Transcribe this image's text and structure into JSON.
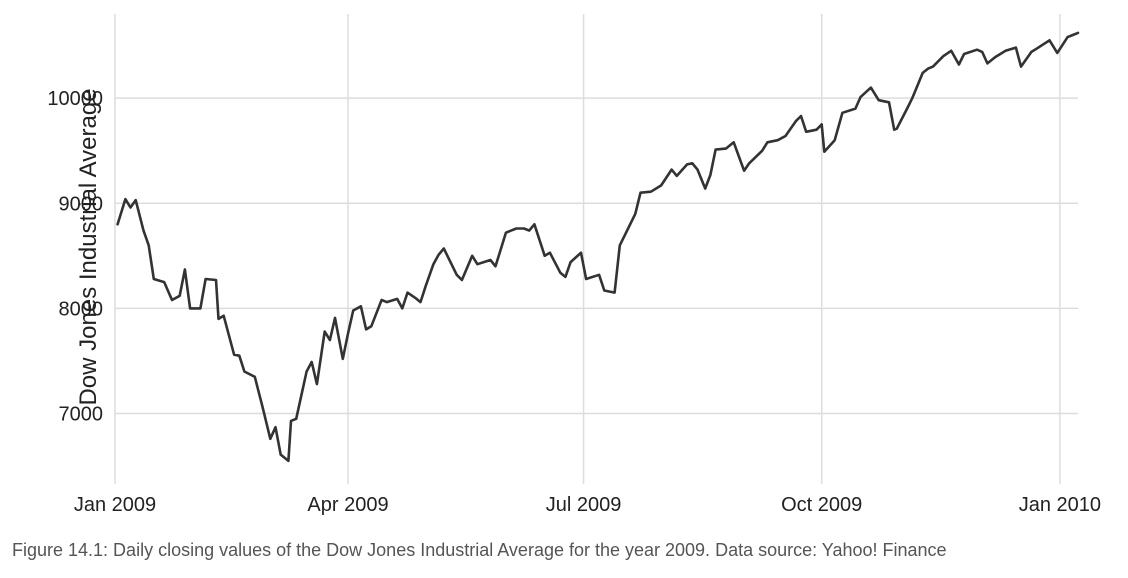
{
  "chart_data": {
    "type": "line",
    "title": "",
    "xlabel": "",
    "ylabel": "Dow Jones Industrial Average",
    "xlim": [
      "2009-01-01",
      "2010-01-08"
    ],
    "ylim": [
      6330,
      10800
    ],
    "x_ticks": [
      {
        "date": "2009-01-01",
        "label": "Jan 2009"
      },
      {
        "date": "2009-04-01",
        "label": "Apr 2009"
      },
      {
        "date": "2009-07-01",
        "label": "Jul 2009"
      },
      {
        "date": "2009-10-01",
        "label": "Oct 2009"
      },
      {
        "date": "2010-01-01",
        "label": "Jan 2010"
      }
    ],
    "y_ticks": [
      7000,
      8000,
      9000,
      10000
    ],
    "grid": true,
    "line_color": "#333333",
    "grid_color": "#dddddd",
    "series": [
      {
        "x": [
          "2009-01-02",
          "2009-01-05",
          "2009-01-07",
          "2009-01-09",
          "2009-01-12",
          "2009-01-14",
          "2009-01-16",
          "2009-01-20",
          "2009-01-23",
          "2009-01-26",
          "2009-01-28",
          "2009-01-30",
          "2009-02-03",
          "2009-02-05",
          "2009-02-09",
          "2009-02-10",
          "2009-02-12",
          "2009-02-16",
          "2009-02-18",
          "2009-02-20",
          "2009-02-24",
          "2009-02-27",
          "2009-03-02",
          "2009-03-04",
          "2009-03-06",
          "2009-03-09",
          "2009-03-10",
          "2009-03-12",
          "2009-03-16",
          "2009-03-18",
          "2009-03-20",
          "2009-03-23",
          "2009-03-25",
          "2009-03-27",
          "2009-03-30",
          "2009-04-01",
          "2009-04-03",
          "2009-04-06",
          "2009-04-08",
          "2009-04-10",
          "2009-04-14",
          "2009-04-16",
          "2009-04-20",
          "2009-04-22",
          "2009-04-24",
          "2009-04-27",
          "2009-04-29",
          "2009-05-01",
          "2009-05-04",
          "2009-05-06",
          "2009-05-08",
          "2009-05-11",
          "2009-05-13",
          "2009-05-15",
          "2009-05-19",
          "2009-05-21",
          "2009-05-26",
          "2009-05-28",
          "2009-06-01",
          "2009-06-03",
          "2009-06-05",
          "2009-06-08",
          "2009-06-10",
          "2009-06-12",
          "2009-06-16",
          "2009-06-18",
          "2009-06-22",
          "2009-06-24",
          "2009-06-26",
          "2009-06-30",
          "2009-07-02",
          "2009-07-07",
          "2009-07-09",
          "2009-07-13",
          "2009-07-15",
          "2009-07-17",
          "2009-07-21",
          "2009-07-23",
          "2009-07-27",
          "2009-07-31",
          "2009-08-04",
          "2009-08-06",
          "2009-08-10",
          "2009-08-12",
          "2009-08-14",
          "2009-08-17",
          "2009-08-19",
          "2009-08-21",
          "2009-08-25",
          "2009-08-28",
          "2009-09-01",
          "2009-09-03",
          "2009-09-08",
          "2009-09-10",
          "2009-09-14",
          "2009-09-17",
          "2009-09-21",
          "2009-09-23",
          "2009-09-25",
          "2009-09-29",
          "2009-10-01",
          "2009-10-02",
          "2009-10-06",
          "2009-10-09",
          "2009-10-14",
          "2009-10-16",
          "2009-10-20",
          "2009-10-23",
          "2009-10-27",
          "2009-10-29",
          "2009-10-30",
          "2009-11-03",
          "2009-11-05",
          "2009-11-09",
          "2009-11-11",
          "2009-11-13",
          "2009-11-17",
          "2009-11-20",
          "2009-11-23",
          "2009-11-25",
          "2009-11-30",
          "2009-12-02",
          "2009-12-04",
          "2009-12-07",
          "2009-12-09",
          "2009-12-11",
          "2009-12-15",
          "2009-12-17",
          "2009-12-21",
          "2009-12-23",
          "2009-12-28",
          "2009-12-31",
          "2010-01-04",
          "2010-01-06",
          "2010-01-08"
        ],
        "y": [
          8800,
          9040,
          8960,
          9030,
          8740,
          8600,
          8280,
          8250,
          8080,
          8120,
          8370,
          8000,
          8000,
          8280,
          8270,
          7900,
          7930,
          7560,
          7550,
          7400,
          7350,
          7060,
          6760,
          6870,
          6610,
          6550,
          6930,
          6950,
          7400,
          7490,
          7280,
          7780,
          7700,
          7910,
          7520,
          7760,
          7980,
          8020,
          7800,
          7830,
          8080,
          8060,
          8090,
          8000,
          8150,
          8100,
          8060,
          8210,
          8420,
          8510,
          8570,
          8420,
          8320,
          8270,
          8500,
          8420,
          8460,
          8400,
          8720,
          8740,
          8760,
          8760,
          8740,
          8800,
          8500,
          8530,
          8340,
          8300,
          8440,
          8530,
          8280,
          8320,
          8170,
          8150,
          8600,
          8700,
          8900,
          9100,
          9110,
          9170,
          9320,
          9260,
          9370,
          9380,
          9320,
          9140,
          9270,
          9510,
          9520,
          9580,
          9310,
          9380,
          9500,
          9580,
          9600,
          9640,
          9780,
          9830,
          9680,
          9700,
          9750,
          9490,
          9600,
          9860,
          9900,
          10010,
          10100,
          9980,
          9960,
          9700,
          9710,
          9900,
          10000,
          10240,
          10280,
          10300,
          10400,
          10450,
          10320,
          10420,
          10460,
          10440,
          10330,
          10390,
          10420,
          10450,
          10480,
          10300,
          10440,
          10470,
          10550,
          10430,
          10580,
          10600,
          10620
        ]
      }
    ]
  },
  "caption": "Figure 14.1: Daily closing values of the Dow Jones Industrial Average for the year 2009. Data source: Yahoo! Finance"
}
